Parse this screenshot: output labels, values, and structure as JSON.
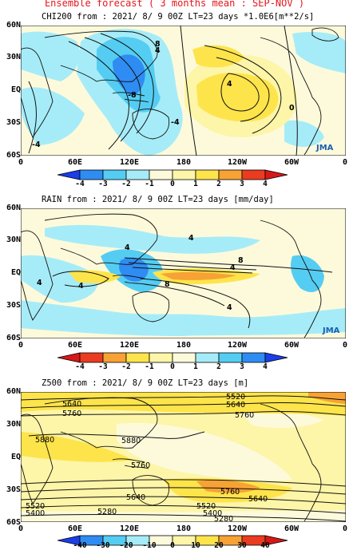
{
  "header": {
    "title": "Ensemble forecast ( 3 months mean : SEP-NOV )"
  },
  "axes": {
    "lat_labels": [
      "60N",
      "30N",
      "EQ",
      "30S",
      "60S"
    ],
    "lon_labels": [
      "0",
      "60E",
      "120E",
      "180",
      "120W",
      "60W",
      "0"
    ]
  },
  "logo": "JMA",
  "panels": [
    {
      "id": "chi200",
      "title": "CHI200  from : 2021/ 8/ 9 00Z LT=23 days   *1.0E6[m**2/s]",
      "colorbar": {
        "ticks": [
          "-4",
          "-3",
          "-2",
          "-1",
          "0",
          "1",
          "2",
          "3",
          "4"
        ],
        "colors": [
          "#1a3ee8",
          "#2f8cf2",
          "#55cdf2",
          "#a6ecf8",
          "#fdfadb",
          "#fdf5a8",
          "#fde44b",
          "#f7a234",
          "#ea3c20",
          "#d71818"
        ]
      },
      "contour_labels": [
        "8",
        "4",
        "-8",
        "-4",
        "4",
        "0",
        "-4"
      ]
    },
    {
      "id": "rain",
      "title": "RAIN   from : 2021/ 8/ 9 00Z LT=23 days   [mm/day]",
      "colorbar": {
        "ticks": [
          "-4",
          "-3",
          "-2",
          "-1",
          "0",
          "1",
          "2",
          "3",
          "4"
        ],
        "colors": [
          "#d71818",
          "#ea3c20",
          "#f7a234",
          "#fde44b",
          "#fdf5a8",
          "#fdfadb",
          "#a6ecf8",
          "#55cdf2",
          "#2f8cf2",
          "#1a3ee8"
        ]
      },
      "contour_labels": [
        "4",
        "4",
        "8",
        "4",
        "4",
        "8",
        "4",
        "4"
      ]
    },
    {
      "id": "z500",
      "title": "Z500   from : 2021/ 8/ 9 00Z LT=23 days   [m]",
      "colorbar": {
        "ticks": [
          "-40",
          "-30",
          "-20",
          "-10",
          "0",
          "10",
          "20",
          "30",
          "40"
        ],
        "colors": [
          "#1a3ee8",
          "#2f8cf2",
          "#55cdf2",
          "#a6ecf8",
          "#fdfadb",
          "#fdf5a8",
          "#fde44b",
          "#f7a234",
          "#ea3c20",
          "#d71818"
        ]
      },
      "contour_labels": [
        "5520",
        "5640",
        "5760",
        "5640",
        "5760",
        "5880",
        "5880",
        "5760",
        "5760",
        "5640",
        "5640",
        "5520",
        "5520",
        "5400",
        "5280",
        "5400",
        "5280"
      ]
    }
  ]
}
